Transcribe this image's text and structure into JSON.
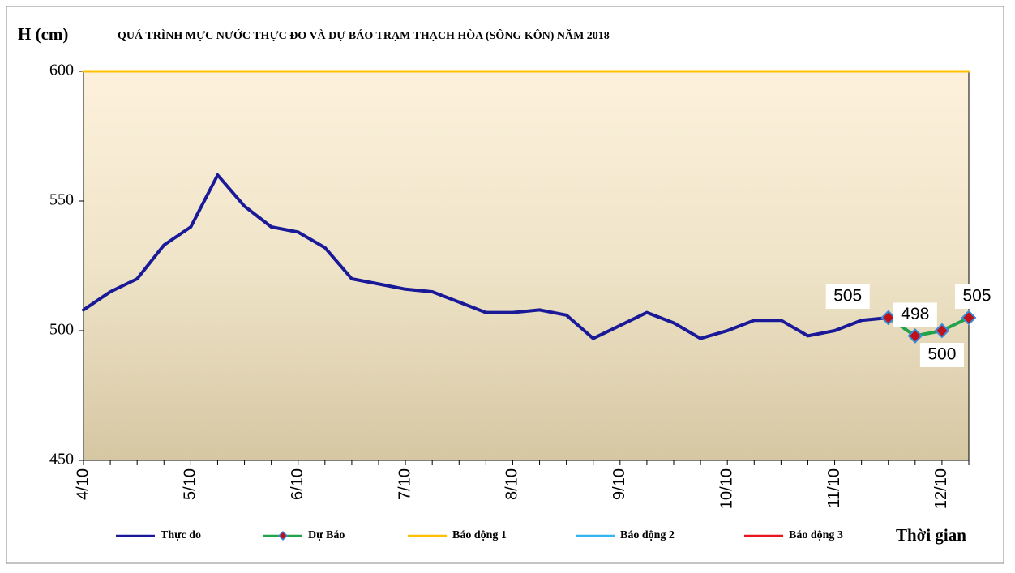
{
  "chart_data": {
    "type": "line",
    "title": "QUÁ TRÌNH MỰC NƯỚC THỰC ĐO VÀ DỰ BÁO TRẠM THẠCH HÒA (SÔNG KÔN) NĂM 2018",
    "y_label": "H (cm)",
    "x_label": "Thời gian",
    "categories": [
      "4/10",
      null,
      null,
      null,
      "5/10",
      null,
      null,
      null,
      "6/10",
      null,
      null,
      null,
      "7/10",
      null,
      null,
      null,
      "8/10",
      null,
      null,
      null,
      "9/10",
      null,
      null,
      null,
      "10/10",
      null,
      null,
      null,
      "11/10",
      null,
      null,
      null,
      "12/10",
      null
    ],
    "series": [
      {
        "name": "Thực đo",
        "color": "#1a1a99",
        "values": [
          508,
          515,
          520,
          533,
          540,
          560,
          548,
          540,
          538,
          532,
          520,
          518,
          516,
          515,
          511,
          507,
          507,
          508,
          506,
          497,
          502,
          507,
          503,
          497,
          500,
          504,
          504,
          498,
          500,
          504,
          505,
          null,
          null,
          null
        ]
      },
      {
        "name": "Dự Báo",
        "color": "#22a24a",
        "values": [
          null,
          null,
          null,
          null,
          null,
          null,
          null,
          null,
          null,
          null,
          null,
          null,
          null,
          null,
          null,
          null,
          null,
          null,
          null,
          null,
          null,
          null,
          null,
          null,
          null,
          null,
          null,
          null,
          null,
          null,
          505,
          498,
          500,
          505
        ]
      },
      {
        "name": "Báo động 1",
        "color": "#ffc000",
        "values": [
          600,
          600,
          600,
          600,
          600,
          600,
          600,
          600,
          600,
          600,
          600,
          600,
          600,
          600,
          600,
          600,
          600,
          600,
          600,
          600,
          600,
          600,
          600,
          600,
          600,
          600,
          600,
          600,
          600,
          600,
          600,
          600,
          600,
          600
        ]
      }
    ],
    "extra_legend": [
      {
        "name": "Báo động 2",
        "color": "#33b5f0"
      },
      {
        "name": "Báo động 3",
        "color": "#e8141e"
      }
    ],
    "ylim": [
      450,
      600
    ],
    "yticks": [
      450,
      500,
      550,
      600
    ]
  }
}
